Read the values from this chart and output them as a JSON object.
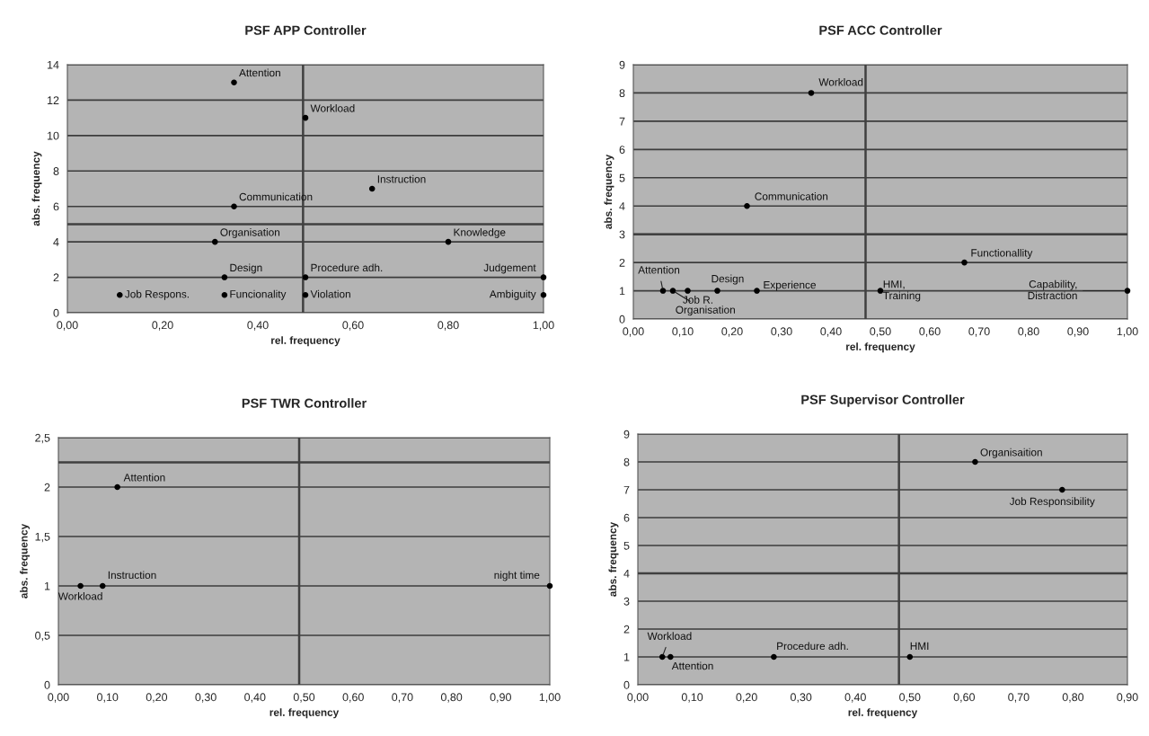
{
  "chart_data": [
    {
      "type": "scatter",
      "title": "PSF APP Controller",
      "xlabel": "rel. frequency",
      "ylabel": "abs. frequency",
      "series": [
        {
          "color": "#000000",
          "x": [
            0.35,
            0.5,
            0.64,
            0.35,
            0.31,
            0.8,
            0.33,
            0.5,
            1.0,
            0.11,
            0.33,
            0.5,
            1.0
          ],
          "values": [
            13,
            11,
            7,
            6,
            4,
            4,
            2,
            2,
            2,
            1,
            1,
            1,
            1
          ]
        }
      ],
      "annotations": [
        {
          "text": "Attention",
          "x": 0.35,
          "y": 13
        },
        {
          "text": "Workload",
          "x": 0.5,
          "y": 11
        },
        {
          "text": "Instruction",
          "x": 0.64,
          "y": 7
        },
        {
          "text": "Communication",
          "x": 0.35,
          "y": 6
        },
        {
          "text": "Organisation",
          "x": 0.31,
          "y": 4
        },
        {
          "text": "Knowledge",
          "x": 0.8,
          "y": 4
        },
        {
          "text": "Design",
          "x": 0.33,
          "y": 2
        },
        {
          "text": "Procedure adh.",
          "x": 0.5,
          "y": 2
        },
        {
          "text": "Judgement",
          "x": 1.0,
          "y": 2
        },
        {
          "text": "Job Respons.",
          "x": 0.11,
          "y": 1
        },
        {
          "text": "Funcionality",
          "x": 0.33,
          "y": 1
        },
        {
          "text": "Violation",
          "x": 0.5,
          "y": 1
        },
        {
          "text": "Ambiguity",
          "x": 1.0,
          "y": 1
        }
      ],
      "xlim": [
        0,
        1
      ],
      "xticks": [
        {
          "value": 0,
          "label": "0,00"
        },
        {
          "value": 0.2,
          "label": "0,20"
        },
        {
          "value": 0.4,
          "label": "0,40"
        },
        {
          "value": 0.6,
          "label": "0,60"
        },
        {
          "value": 0.8,
          "label": "0,80"
        },
        {
          "value": 1,
          "label": "1,00"
        }
      ],
      "ylim": [
        0,
        14
      ],
      "yticks": [
        0,
        2,
        4,
        6,
        8,
        10,
        12,
        14
      ],
      "ref_lines": [
        {
          "axis": "x",
          "value": 0.495,
          "color": "#404040"
        },
        {
          "axis": "y",
          "value": 5,
          "color": "#404040"
        }
      ],
      "grid": "y",
      "marker": "circle"
    },
    {
      "type": "scatter",
      "title": "PSF ACC Controller",
      "xlabel": "rel. frequency",
      "ylabel": "abs. frequency",
      "series": [
        {
          "color": "#000000",
          "x": [
            0.36,
            0.23,
            0.67,
            0.06,
            0.08,
            0.11,
            0.17,
            0.25,
            0.5,
            1.0
          ],
          "values": [
            8,
            4,
            2,
            1,
            1,
            1,
            1,
            1,
            1,
            1
          ]
        }
      ],
      "annotations": [
        {
          "text": "Workload",
          "x": 0.36,
          "y": 8
        },
        {
          "text": "Communication",
          "x": 0.23,
          "y": 4
        },
        {
          "text": "Functionallity",
          "x": 0.67,
          "y": 2
        },
        {
          "text": "Attention",
          "x": 0.06,
          "y": 1
        },
        {
          "text": "Organisation",
          "x": 0.08,
          "y": 1
        },
        {
          "text": "Job R.",
          "x": 0.11,
          "y": 1
        },
        {
          "text": "Design",
          "x": 0.17,
          "y": 1
        },
        {
          "text": "Experience",
          "x": 0.25,
          "y": 1
        },
        {
          "text": "HMI,\nTraining",
          "x": 0.5,
          "y": 1
        },
        {
          "text": "Capability,\nDistraction",
          "x": 1.0,
          "y": 1
        }
      ],
      "xlim": [
        0,
        1
      ],
      "xticks": [
        {
          "value": 0,
          "label": "0,00"
        },
        {
          "value": 0.1,
          "label": "0,10"
        },
        {
          "value": 0.2,
          "label": "0,20"
        },
        {
          "value": 0.3,
          "label": "0,30"
        },
        {
          "value": 0.4,
          "label": "0,40"
        },
        {
          "value": 0.5,
          "label": "0,50"
        },
        {
          "value": 0.6,
          "label": "0,60"
        },
        {
          "value": 0.7,
          "label": "0,70"
        },
        {
          "value": 0.8,
          "label": "0,80"
        },
        {
          "value": 0.9,
          "label": "0,90"
        },
        {
          "value": 1,
          "label": "1,00"
        }
      ],
      "ylim": [
        0,
        9
      ],
      "yticks": [
        0,
        1,
        2,
        3,
        4,
        5,
        6,
        7,
        8,
        9
      ],
      "ref_lines": [
        {
          "axis": "x",
          "value": 0.47,
          "color": "#404040"
        },
        {
          "axis": "y",
          "value": 3,
          "color": "#404040"
        }
      ],
      "grid": "y",
      "marker": "circle"
    },
    {
      "type": "scatter",
      "title": "PSF TWR Controller",
      "xlabel": "rel. frequency",
      "ylabel": "abs. frequency",
      "series": [
        {
          "color": "#000000",
          "x": [
            0.12,
            0.045,
            0.09,
            1.0
          ],
          "values": [
            2,
            1,
            1,
            1
          ]
        }
      ],
      "annotations": [
        {
          "text": "Attention",
          "x": 0.12,
          "y": 2
        },
        {
          "text": "Workload",
          "x": 0.045,
          "y": 1
        },
        {
          "text": "Instruction",
          "x": 0.09,
          "y": 1
        },
        {
          "text": "night time",
          "x": 1.0,
          "y": 1
        }
      ],
      "xlim": [
        0,
        1
      ],
      "xticks": [
        {
          "value": 0,
          "label": "0,00"
        },
        {
          "value": 0.1,
          "label": "0,10"
        },
        {
          "value": 0.2,
          "label": "0,20"
        },
        {
          "value": 0.3,
          "label": "0,30"
        },
        {
          "value": 0.4,
          "label": "0,40"
        },
        {
          "value": 0.5,
          "label": "0,50"
        },
        {
          "value": 0.6,
          "label": "0,60"
        },
        {
          "value": 0.7,
          "label": "0,70"
        },
        {
          "value": 0.8,
          "label": "0,80"
        },
        {
          "value": 0.9,
          "label": "0,90"
        },
        {
          "value": 1,
          "label": "1,00"
        }
      ],
      "ylim": [
        0,
        2.5
      ],
      "yticks": [
        0,
        {
          "value": 0.5,
          "label": "0,5"
        },
        1,
        {
          "value": 1.5,
          "label": "1,5"
        },
        2,
        {
          "value": 2.5,
          "label": "2,5"
        }
      ],
      "ref_lines": [
        {
          "axis": "x",
          "value": 0.49,
          "color": "#404040"
        },
        {
          "axis": "y",
          "value": 2.25,
          "color": "#404040"
        }
      ],
      "grid": "y",
      "marker": "circle"
    },
    {
      "type": "scatter",
      "title": "PSF Supervisor Controller",
      "xlabel": "rel. frequency",
      "ylabel": "abs. frequency",
      "series": [
        {
          "color": "#000000",
          "x": [
            0.62,
            0.78,
            0.045,
            0.06,
            0.25,
            0.5
          ],
          "values": [
            8,
            7,
            1,
            1,
            1,
            1
          ]
        }
      ],
      "annotations": [
        {
          "text": "Organisaition",
          "x": 0.62,
          "y": 8
        },
        {
          "text": "Job Responsibility",
          "x": 0.78,
          "y": 7
        },
        {
          "text": "Workload",
          "x": 0.045,
          "y": 1
        },
        {
          "text": "Attention",
          "x": 0.06,
          "y": 1
        },
        {
          "text": "Procedure adh.",
          "x": 0.25,
          "y": 1
        },
        {
          "text": "HMI",
          "x": 0.5,
          "y": 1
        }
      ],
      "xlim": [
        0,
        0.9
      ],
      "xticks": [
        {
          "value": 0,
          "label": "0,00"
        },
        {
          "value": 0.1,
          "label": "0,10"
        },
        {
          "value": 0.2,
          "label": "0,20"
        },
        {
          "value": 0.3,
          "label": "0,30"
        },
        {
          "value": 0.4,
          "label": "0,40"
        },
        {
          "value": 0.5,
          "label": "0,50"
        },
        {
          "value": 0.6,
          "label": "0,60"
        },
        {
          "value": 0.7,
          "label": "0,70"
        },
        {
          "value": 0.8,
          "label": "0,80"
        },
        {
          "value": 0.9,
          "label": "0,90"
        }
      ],
      "ylim": [
        0,
        9
      ],
      "yticks": [
        0,
        1,
        2,
        3,
        4,
        5,
        6,
        7,
        8,
        9
      ],
      "ref_lines": [
        {
          "axis": "x",
          "value": 0.48,
          "color": "#404040"
        },
        {
          "axis": "y",
          "value": 4,
          "color": "#404040"
        }
      ],
      "grid": "y",
      "marker": "circle"
    }
  ]
}
